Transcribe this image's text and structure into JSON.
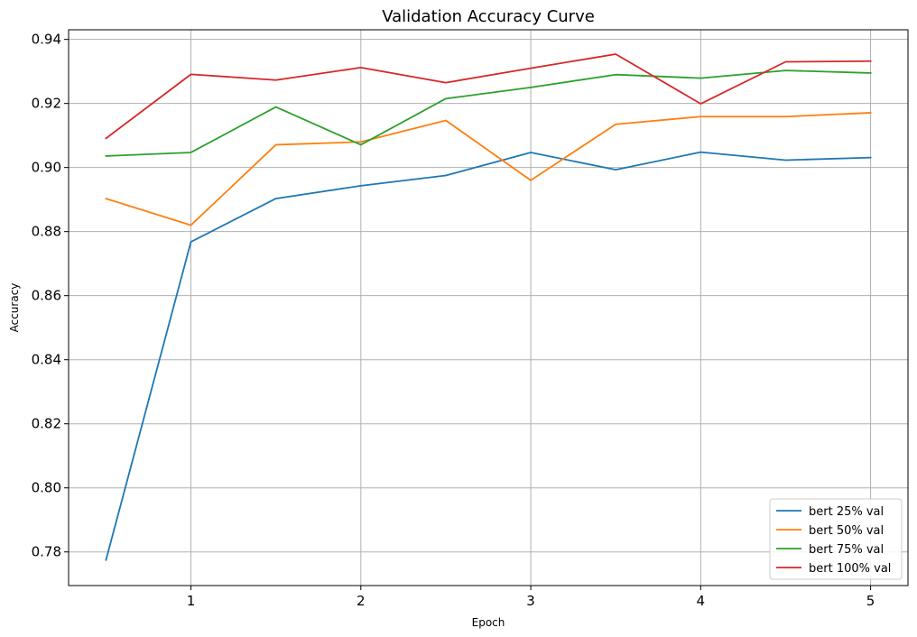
{
  "chart_data": {
    "type": "line",
    "title": "Validation Accuracy Curve",
    "xlabel": "Epoch",
    "ylabel": "Accuracy",
    "xlim": [
      0.28,
      5.22
    ],
    "ylim": [
      0.7695,
      0.943
    ],
    "xticks": [
      1,
      2,
      3,
      4,
      5
    ],
    "yticks": [
      0.78,
      0.8,
      0.82,
      0.84,
      0.86,
      0.88,
      0.9,
      0.92,
      0.94
    ],
    "ytick_labels": [
      "0.78",
      "0.80",
      "0.82",
      "0.84",
      "0.86",
      "0.88",
      "0.90",
      "0.92",
      "0.94"
    ],
    "grid": true,
    "legend_position": "lower-right",
    "x": [
      0.5,
      1,
      1.5,
      2,
      2.5,
      3,
      3.5,
      4,
      4.5,
      5
    ],
    "series": [
      {
        "name": "bert 25% val",
        "color": "#1f77b4",
        "values": [
          0.7775,
          0.8768,
          0.8903,
          0.8943,
          0.8975,
          0.9047,
          0.8993,
          0.9048,
          0.9023,
          0.9031
        ]
      },
      {
        "name": "bert 50% val",
        "color": "#ff7f0e",
        "values": [
          0.8903,
          0.882,
          0.9071,
          0.908,
          0.9147,
          0.896,
          0.9135,
          0.9159,
          0.9159,
          0.9171
        ]
      },
      {
        "name": "bert 75% val",
        "color": "#2ca02c",
        "values": [
          0.9036,
          0.9047,
          0.9189,
          0.9071,
          0.9215,
          0.925,
          0.929,
          0.9279,
          0.9303,
          0.9295
        ]
      },
      {
        "name": "bert 100% val",
        "color": "#d62728",
        "values": [
          0.9091,
          0.9291,
          0.9273,
          0.9312,
          0.9265,
          0.931,
          0.9354,
          0.9199,
          0.933,
          0.9332
        ]
      }
    ]
  }
}
